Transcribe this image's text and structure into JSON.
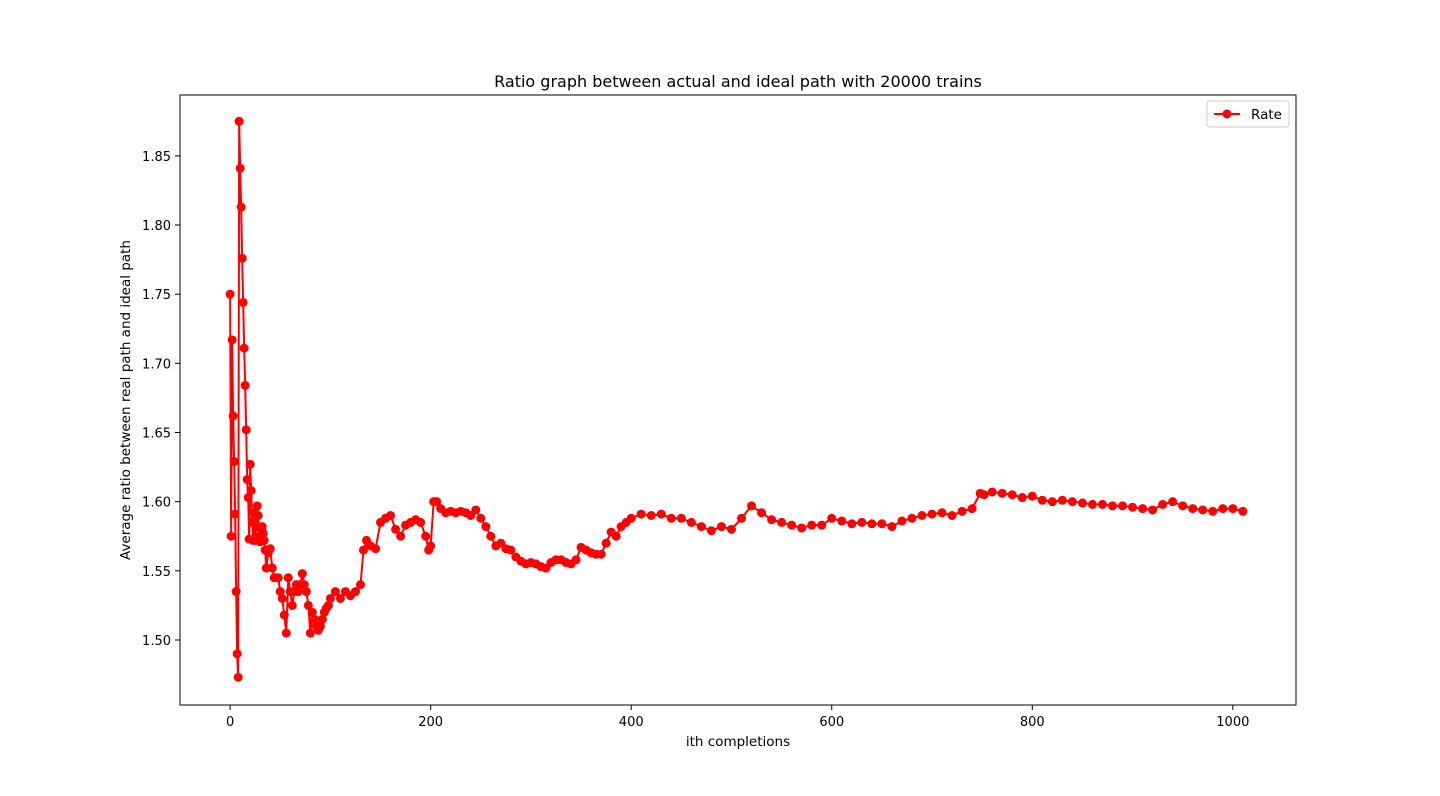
{
  "chart_data": {
    "type": "line",
    "title": "Ratio graph between actual and ideal path with 20000 trains",
    "xlabel": "ith completions",
    "ylabel": "Average ratio between real path and ideal path",
    "xlim": [
      -50,
      1063
    ],
    "ylim": [
      1.453,
      1.894
    ],
    "xticks": [
      0,
      200,
      400,
      600,
      800,
      1000
    ],
    "xtick_labels": [
      "0",
      "200",
      "400",
      "600",
      "800",
      "1000"
    ],
    "yticks": [
      1.5,
      1.55,
      1.6,
      1.65,
      1.7,
      1.75,
      1.8,
      1.85
    ],
    "ytick_labels": [
      "1.50",
      "1.55",
      "1.60",
      "1.65",
      "1.70",
      "1.75",
      "1.80",
      "1.85"
    ],
    "grid": false,
    "legend": {
      "position": "top-right"
    },
    "series": [
      {
        "name": "Rate",
        "color": "#ff0000",
        "marker": "circle",
        "x": [
          0,
          1,
          2,
          3,
          4,
          5,
          6,
          7,
          8,
          9,
          10,
          11,
          12,
          13,
          14,
          15,
          16,
          17,
          18,
          19,
          20,
          21,
          22,
          23,
          24,
          25,
          26,
          27,
          28,
          29,
          30,
          31,
          32,
          33,
          34,
          35,
          36,
          38,
          40,
          42,
          44,
          46,
          48,
          50,
          52,
          54,
          56,
          58,
          60,
          62,
          64,
          66,
          68,
          70,
          72,
          74,
          76,
          78,
          80,
          82,
          84,
          86,
          88,
          90,
          92,
          94,
          96,
          98,
          100,
          105,
          110,
          115,
          120,
          125,
          130,
          133,
          136,
          140,
          145,
          150,
          155,
          160,
          165,
          170,
          175,
          180,
          185,
          190,
          195,
          198,
          200,
          203,
          206,
          210,
          215,
          220,
          225,
          230,
          235,
          240,
          245,
          250,
          255,
          260,
          265,
          270,
          275,
          280,
          285,
          290,
          295,
          300,
          305,
          310,
          315,
          320,
          325,
          330,
          335,
          340,
          345,
          350,
          355,
          360,
          365,
          370,
          375,
          380,
          385,
          390,
          395,
          400,
          410,
          420,
          430,
          440,
          450,
          460,
          470,
          480,
          490,
          500,
          510,
          520,
          530,
          540,
          550,
          560,
          570,
          580,
          590,
          600,
          610,
          620,
          630,
          640,
          650,
          660,
          670,
          680,
          690,
          700,
          710,
          720,
          730,
          740,
          748,
          752,
          760,
          770,
          780,
          790,
          800,
          810,
          820,
          830,
          840,
          850,
          860,
          870,
          880,
          890,
          900,
          910,
          920,
          930,
          940,
          950,
          960,
          970,
          980,
          990,
          1000,
          1010
        ],
        "y": [
          1.75,
          1.575,
          1.717,
          1.662,
          1.629,
          1.591,
          1.535,
          1.49,
          1.473,
          1.875,
          1.841,
          1.813,
          1.776,
          1.744,
          1.711,
          1.684,
          1.652,
          1.616,
          1.603,
          1.573,
          1.627,
          1.608,
          1.585,
          1.572,
          1.592,
          1.572,
          1.583,
          1.597,
          1.59,
          1.575,
          1.571,
          1.58,
          1.582,
          1.577,
          1.572,
          1.565,
          1.552,
          1.563,
          1.566,
          1.552,
          1.545,
          1.545,
          1.545,
          1.535,
          1.53,
          1.518,
          1.505,
          1.545,
          1.535,
          1.525,
          1.535,
          1.54,
          1.535,
          1.54,
          1.548,
          1.54,
          1.535,
          1.525,
          1.505,
          1.52,
          1.515,
          1.51,
          1.507,
          1.51,
          1.515,
          1.52,
          1.523,
          1.525,
          1.53,
          1.535,
          1.53,
          1.535,
          1.532,
          1.535,
          1.54,
          1.565,
          1.572,
          1.568,
          1.566,
          1.585,
          1.588,
          1.59,
          1.58,
          1.575,
          1.583,
          1.585,
          1.587,
          1.585,
          1.575,
          1.565,
          1.568,
          1.6,
          1.6,
          1.595,
          1.592,
          1.593,
          1.592,
          1.593,
          1.592,
          1.59,
          1.594,
          1.588,
          1.582,
          1.575,
          1.568,
          1.57,
          1.566,
          1.565,
          1.56,
          1.557,
          1.555,
          1.556,
          1.555,
          1.553,
          1.552,
          1.556,
          1.558,
          1.558,
          1.556,
          1.555,
          1.558,
          1.567,
          1.565,
          1.563,
          1.562,
          1.562,
          1.57,
          1.578,
          1.575,
          1.582,
          1.585,
          1.588,
          1.591,
          1.59,
          1.591,
          1.588,
          1.588,
          1.585,
          1.582,
          1.579,
          1.582,
          1.58,
          1.588,
          1.597,
          1.592,
          1.587,
          1.585,
          1.583,
          1.581,
          1.583,
          1.583,
          1.588,
          1.586,
          1.584,
          1.585,
          1.584,
          1.584,
          1.582,
          1.586,
          1.588,
          1.59,
          1.591,
          1.592,
          1.59,
          1.593,
          1.595,
          1.606,
          1.605,
          1.607,
          1.606,
          1.605,
          1.603,
          1.604,
          1.601,
          1.6,
          1.601,
          1.6,
          1.599,
          1.598,
          1.598,
          1.597,
          1.597,
          1.596,
          1.595,
          1.594,
          1.598,
          1.6,
          1.597,
          1.595,
          1.594,
          1.593,
          1.595,
          1.595,
          1.593
        ]
      }
    ]
  }
}
